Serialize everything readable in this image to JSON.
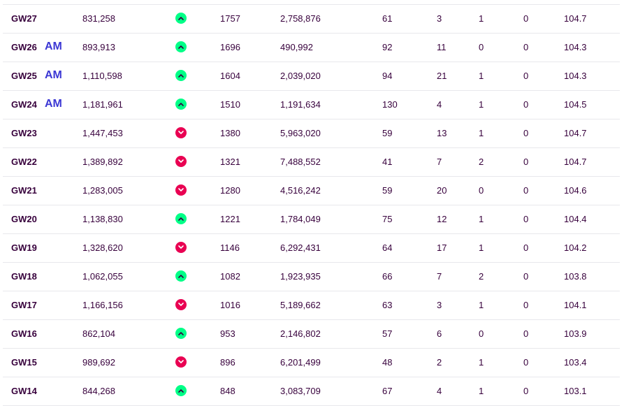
{
  "colors": {
    "text": "#37003c",
    "chip": "#3b37d4",
    "up": "#00ff87",
    "down": "#e90052",
    "divider": "#e8e8ec"
  },
  "rows": [
    {
      "gw": "GW27",
      "chip": "",
      "points": "831,258",
      "move": "up",
      "rank": "1757",
      "transfers": "2,758,876",
      "c1": "61",
      "c2": "3",
      "c3": "1",
      "c4": "0",
      "value": "104.7"
    },
    {
      "gw": "GW26",
      "chip": "AM",
      "points": "893,913",
      "move": "up",
      "rank": "1696",
      "transfers": "490,992",
      "c1": "92",
      "c2": "11",
      "c3": "0",
      "c4": "0",
      "value": "104.3"
    },
    {
      "gw": "GW25",
      "chip": "AM",
      "points": "1,110,598",
      "move": "up",
      "rank": "1604",
      "transfers": "2,039,020",
      "c1": "94",
      "c2": "21",
      "c3": "1",
      "c4": "0",
      "value": "104.3"
    },
    {
      "gw": "GW24",
      "chip": "AM",
      "points": "1,181,961",
      "move": "up",
      "rank": "1510",
      "transfers": "1,191,634",
      "c1": "130",
      "c2": "4",
      "c3": "1",
      "c4": "0",
      "value": "104.5"
    },
    {
      "gw": "GW23",
      "chip": "",
      "points": "1,447,453",
      "move": "down",
      "rank": "1380",
      "transfers": "5,963,020",
      "c1": "59",
      "c2": "13",
      "c3": "1",
      "c4": "0",
      "value": "104.7"
    },
    {
      "gw": "GW22",
      "chip": "",
      "points": "1,389,892",
      "move": "down",
      "rank": "1321",
      "transfers": "7,488,552",
      "c1": "41",
      "c2": "7",
      "c3": "2",
      "c4": "0",
      "value": "104.7"
    },
    {
      "gw": "GW21",
      "chip": "",
      "points": "1,283,005",
      "move": "down",
      "rank": "1280",
      "transfers": "4,516,242",
      "c1": "59",
      "c2": "20",
      "c3": "0",
      "c4": "0",
      "value": "104.6"
    },
    {
      "gw": "GW20",
      "chip": "",
      "points": "1,138,830",
      "move": "up",
      "rank": "1221",
      "transfers": "1,784,049",
      "c1": "75",
      "c2": "12",
      "c3": "1",
      "c4": "0",
      "value": "104.4"
    },
    {
      "gw": "GW19",
      "chip": "",
      "points": "1,328,620",
      "move": "down",
      "rank": "1146",
      "transfers": "6,292,431",
      "c1": "64",
      "c2": "17",
      "c3": "1",
      "c4": "0",
      "value": "104.2"
    },
    {
      "gw": "GW18",
      "chip": "",
      "points": "1,062,055",
      "move": "up",
      "rank": "1082",
      "transfers": "1,923,935",
      "c1": "66",
      "c2": "7",
      "c3": "2",
      "c4": "0",
      "value": "103.8"
    },
    {
      "gw": "GW17",
      "chip": "",
      "points": "1,166,156",
      "move": "down",
      "rank": "1016",
      "transfers": "5,189,662",
      "c1": "63",
      "c2": "3",
      "c3": "1",
      "c4": "0",
      "value": "104.1"
    },
    {
      "gw": "GW16",
      "chip": "",
      "points": "862,104",
      "move": "up",
      "rank": "953",
      "transfers": "2,146,802",
      "c1": "57",
      "c2": "6",
      "c3": "0",
      "c4": "0",
      "value": "103.9"
    },
    {
      "gw": "GW15",
      "chip": "",
      "points": "989,692",
      "move": "down",
      "rank": "896",
      "transfers": "6,201,499",
      "c1": "48",
      "c2": "2",
      "c3": "1",
      "c4": "0",
      "value": "103.4"
    },
    {
      "gw": "GW14",
      "chip": "",
      "points": "844,268",
      "move": "up",
      "rank": "848",
      "transfers": "3,083,709",
      "c1": "67",
      "c2": "4",
      "c3": "1",
      "c4": "0",
      "value": "103.1"
    }
  ]
}
